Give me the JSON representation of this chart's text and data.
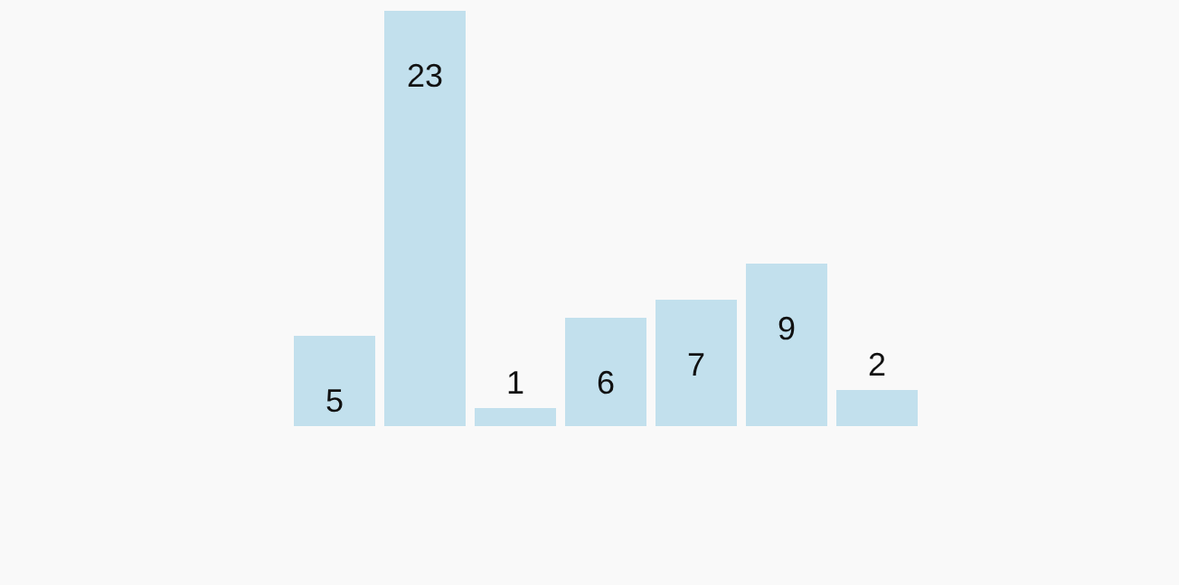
{
  "chart_data": {
    "type": "bar",
    "categories": [
      null,
      null,
      null,
      null,
      null,
      null,
      null
    ],
    "values": [
      5,
      23,
      1,
      6,
      7,
      9,
      2
    ],
    "color": "#c2e0ed",
    "data_labels": true,
    "grid": false,
    "legend": false
  }
}
